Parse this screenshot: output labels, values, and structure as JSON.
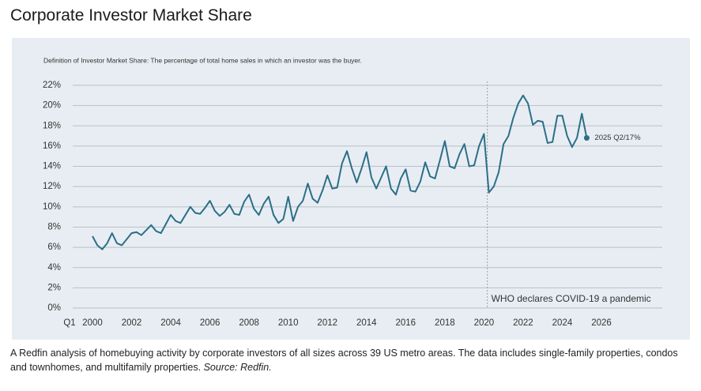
{
  "chart_data": {
    "type": "line",
    "title": "Corporate Investor Market Share",
    "subtitle": "Definition of Investor Market Share: The percentage of total home sales in which an investor was the buyer.",
    "caption": "A Redfin analysis of homebuying activity by corporate investors of all sizes across 39 US metro areas. The data includes single-family properties, condos and townhomes, and multifamily properties.",
    "source": "Source: Redfin.",
    "x_start_label": "Q1",
    "x": [
      2000,
      2000.25,
      2000.5,
      2000.75,
      2001,
      2001.25,
      2001.5,
      2001.75,
      2002,
      2002.25,
      2002.5,
      2002.75,
      2003,
      2003.25,
      2003.5,
      2003.75,
      2004,
      2004.25,
      2004.5,
      2004.75,
      2005,
      2005.25,
      2005.5,
      2005.75,
      2006,
      2006.25,
      2006.5,
      2006.75,
      2007,
      2007.25,
      2007.5,
      2007.75,
      2008,
      2008.25,
      2008.5,
      2008.75,
      2009,
      2009.25,
      2009.5,
      2009.75,
      2010,
      2010.25,
      2010.5,
      2010.75,
      2011,
      2011.25,
      2011.5,
      2011.75,
      2012,
      2012.25,
      2012.5,
      2012.75,
      2013,
      2013.25,
      2013.5,
      2013.75,
      2014,
      2014.25,
      2014.5,
      2014.75,
      2015,
      2015.25,
      2015.5,
      2015.75,
      2016,
      2016.25,
      2016.5,
      2016.75,
      2017,
      2017.25,
      2017.5,
      2017.75,
      2018,
      2018.25,
      2018.5,
      2018.75,
      2019,
      2019.25,
      2019.5,
      2019.75,
      2020,
      2020.25,
      2020.5,
      2020.75,
      2021,
      2021.25,
      2021.5,
      2021.75,
      2022,
      2022.25,
      2022.5,
      2022.75,
      2023,
      2023.25,
      2023.5,
      2023.75,
      2024,
      2024.25,
      2024.5,
      2024.75,
      2025,
      2025.25
    ],
    "series": [
      {
        "name": "Investor market share",
        "color": "#2b6f88",
        "values": [
          7.1,
          6.2,
          5.8,
          6.4,
          7.4,
          6.4,
          6.2,
          6.8,
          7.4,
          7.5,
          7.2,
          7.7,
          8.2,
          7.6,
          7.4,
          8.3,
          9.2,
          8.6,
          8.4,
          9.2,
          10.0,
          9.4,
          9.3,
          9.9,
          10.6,
          9.6,
          9.1,
          9.5,
          10.2,
          9.3,
          9.2,
          10.5,
          11.2,
          9.8,
          9.2,
          10.3,
          11.0,
          9.2,
          8.4,
          8.8,
          11.0,
          8.6,
          10.0,
          10.6,
          12.3,
          10.8,
          10.4,
          11.6,
          13.1,
          11.8,
          11.9,
          14.3,
          15.5,
          13.8,
          12.4,
          13.8,
          15.4,
          12.9,
          11.8,
          12.9,
          14.0,
          11.8,
          11.2,
          12.8,
          13.7,
          11.6,
          11.5,
          12.5,
          14.4,
          13.0,
          12.8,
          14.6,
          16.5,
          14.0,
          13.8,
          15.2,
          16.2,
          14.0,
          14.1,
          16.0,
          17.2,
          11.4,
          12.0,
          13.4,
          16.2,
          17.0,
          18.8,
          20.2,
          21.0,
          20.2,
          18.1,
          18.5,
          18.4,
          16.3,
          16.4,
          19.0,
          19.0,
          17.0,
          15.9,
          16.8,
          19.2,
          16.8
        ]
      }
    ],
    "last_point_label": "2025 Q2/17%",
    "event": {
      "text": "WHO declares COVID-19 a pandemic",
      "x": 2020.17
    },
    "xlim": [
      2000,
      2026
    ],
    "xticks": [
      2000,
      2002,
      2004,
      2006,
      2008,
      2010,
      2012,
      2014,
      2016,
      2018,
      2020,
      2022,
      2024,
      2026
    ],
    "ylim": [
      0,
      22
    ],
    "yticks": [
      {
        "value": 0,
        "label": "0%"
      },
      {
        "value": 2,
        "label": "2%"
      },
      {
        "value": 4,
        "label": "4%"
      },
      {
        "value": 6,
        "label": "6%"
      },
      {
        "value": 8,
        "label": "8%"
      },
      {
        "value": 10,
        "label": "10%"
      },
      {
        "value": 12,
        "label": "12%"
      },
      {
        "value": 14,
        "label": "14%"
      },
      {
        "value": 16,
        "label": "16%"
      },
      {
        "value": 18,
        "label": "18%"
      },
      {
        "value": 20,
        "label": "20%"
      },
      {
        "value": 22,
        "label": "22%"
      }
    ],
    "grid": true
  }
}
